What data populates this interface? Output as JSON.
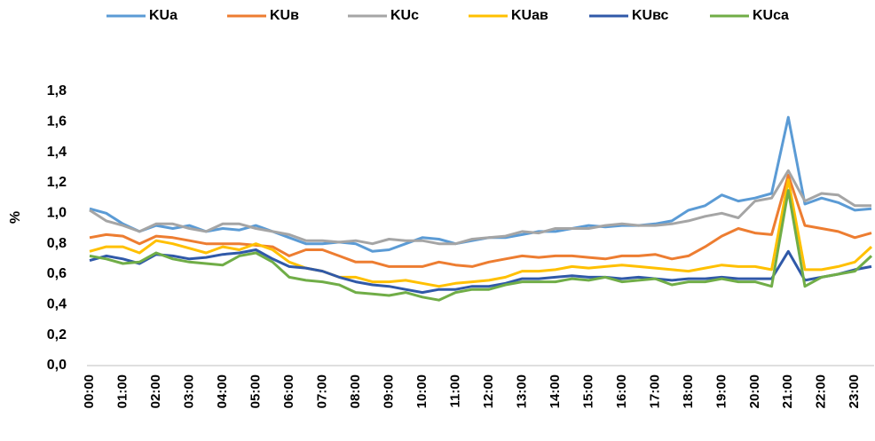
{
  "chart_data": {
    "type": "line",
    "y_label": "%",
    "categories": [
      "00:00",
      null,
      "01:00",
      null,
      "02:00",
      null,
      "03:00",
      null,
      "04:00",
      null,
      "05:00",
      null,
      "06:00",
      null,
      "07:00",
      null,
      "08:00",
      null,
      "09:00",
      null,
      "10:00",
      null,
      "11:00",
      null,
      "12:00",
      null,
      "13:00",
      null,
      "14:00",
      null,
      "15:00",
      null,
      "16:00",
      null,
      "17:00",
      null,
      "18:00",
      null,
      "19:00",
      null,
      "20:00",
      null,
      "21:00",
      null,
      "22:00",
      null,
      "23:00",
      null
    ],
    "ylim": [
      0,
      1.8
    ],
    "yticks": [
      {
        "value": 0,
        "label": "0,0"
      },
      {
        "value": 0.2,
        "label": "0,2"
      },
      {
        "value": 0.4,
        "label": "0,4"
      },
      {
        "value": 0.6,
        "label": "0,6"
      },
      {
        "value": 0.8,
        "label": "0,8"
      },
      {
        "value": 1,
        "label": "1,0"
      },
      {
        "value": 1.2,
        "label": "1,2"
      },
      {
        "value": 1.4,
        "label": "1,4"
      },
      {
        "value": 1.6,
        "label": "1,6"
      },
      {
        "value": 1.8,
        "label": "1,8"
      }
    ],
    "grid": false,
    "legend": "top",
    "series": [
      {
        "name": "KUa",
        "color": "#5B9BD5",
        "values": [
          1.03,
          1.0,
          0.93,
          0.88,
          0.92,
          0.9,
          0.92,
          0.88,
          0.9,
          0.89,
          0.92,
          0.88,
          0.84,
          0.8,
          0.8,
          0.81,
          0.8,
          0.75,
          0.76,
          0.8,
          0.84,
          0.83,
          0.8,
          0.82,
          0.84,
          0.84,
          0.86,
          0.88,
          0.88,
          0.9,
          0.92,
          0.91,
          0.92,
          0.92,
          0.93,
          0.95,
          1.02,
          1.05,
          1.12,
          1.08,
          1.1,
          1.13,
          1.63,
          1.06,
          1.1,
          1.07,
          1.02,
          1.03
        ]
      },
      {
        "name": "KUв",
        "color": "#ED7D31",
        "values": [
          0.84,
          0.86,
          0.85,
          0.8,
          0.85,
          0.84,
          0.82,
          0.8,
          0.8,
          0.8,
          0.79,
          0.78,
          0.72,
          0.76,
          0.76,
          0.72,
          0.68,
          0.68,
          0.65,
          0.65,
          0.65,
          0.68,
          0.66,
          0.65,
          0.68,
          0.7,
          0.72,
          0.71,
          0.72,
          0.72,
          0.71,
          0.7,
          0.72,
          0.72,
          0.73,
          0.7,
          0.72,
          0.78,
          0.85,
          0.9,
          0.87,
          0.86,
          1.25,
          0.92,
          0.9,
          0.88,
          0.84,
          0.87
        ]
      },
      {
        "name": "KUc",
        "color": "#A5A5A5",
        "values": [
          1.02,
          0.95,
          0.92,
          0.88,
          0.93,
          0.93,
          0.9,
          0.88,
          0.93,
          0.93,
          0.9,
          0.88,
          0.86,
          0.82,
          0.82,
          0.81,
          0.82,
          0.8,
          0.83,
          0.82,
          0.82,
          0.8,
          0.8,
          0.83,
          0.84,
          0.85,
          0.88,
          0.87,
          0.9,
          0.9,
          0.9,
          0.92,
          0.93,
          0.92,
          0.92,
          0.93,
          0.95,
          0.98,
          1.0,
          0.97,
          1.08,
          1.1,
          1.28,
          1.08,
          1.13,
          1.12,
          1.05,
          1.05
        ]
      },
      {
        "name": "KUав",
        "color": "#FFC000",
        "values": [
          0.75,
          0.78,
          0.78,
          0.74,
          0.82,
          0.8,
          0.77,
          0.74,
          0.78,
          0.76,
          0.8,
          0.76,
          0.68,
          0.64,
          0.62,
          0.58,
          0.58,
          0.55,
          0.55,
          0.56,
          0.54,
          0.52,
          0.54,
          0.55,
          0.56,
          0.58,
          0.62,
          0.62,
          0.63,
          0.65,
          0.64,
          0.65,
          0.66,
          0.65,
          0.64,
          0.63,
          0.62,
          0.64,
          0.66,
          0.65,
          0.65,
          0.63,
          1.22,
          0.63,
          0.63,
          0.65,
          0.68,
          0.78
        ]
      },
      {
        "name": "KUвс",
        "color": "#3059A8",
        "values": [
          0.69,
          0.72,
          0.7,
          0.67,
          0.73,
          0.72,
          0.7,
          0.71,
          0.73,
          0.74,
          0.76,
          0.7,
          0.65,
          0.64,
          0.62,
          0.58,
          0.55,
          0.53,
          0.52,
          0.5,
          0.48,
          0.5,
          0.5,
          0.52,
          0.52,
          0.54,
          0.57,
          0.57,
          0.58,
          0.59,
          0.58,
          0.58,
          0.57,
          0.58,
          0.57,
          0.56,
          0.57,
          0.57,
          0.58,
          0.57,
          0.57,
          0.57,
          0.75,
          0.56,
          0.58,
          0.6,
          0.63,
          0.65
        ]
      },
      {
        "name": "KUca",
        "color": "#70AD47",
        "values": [
          0.72,
          0.7,
          0.67,
          0.68,
          0.74,
          0.7,
          0.68,
          0.67,
          0.66,
          0.72,
          0.74,
          0.68,
          0.58,
          0.56,
          0.55,
          0.53,
          0.48,
          0.47,
          0.46,
          0.48,
          0.45,
          0.43,
          0.48,
          0.5,
          0.5,
          0.53,
          0.55,
          0.55,
          0.55,
          0.57,
          0.56,
          0.58,
          0.55,
          0.56,
          0.57,
          0.53,
          0.55,
          0.55,
          0.57,
          0.55,
          0.55,
          0.52,
          1.15,
          0.52,
          0.58,
          0.6,
          0.62,
          0.72
        ]
      }
    ]
  }
}
